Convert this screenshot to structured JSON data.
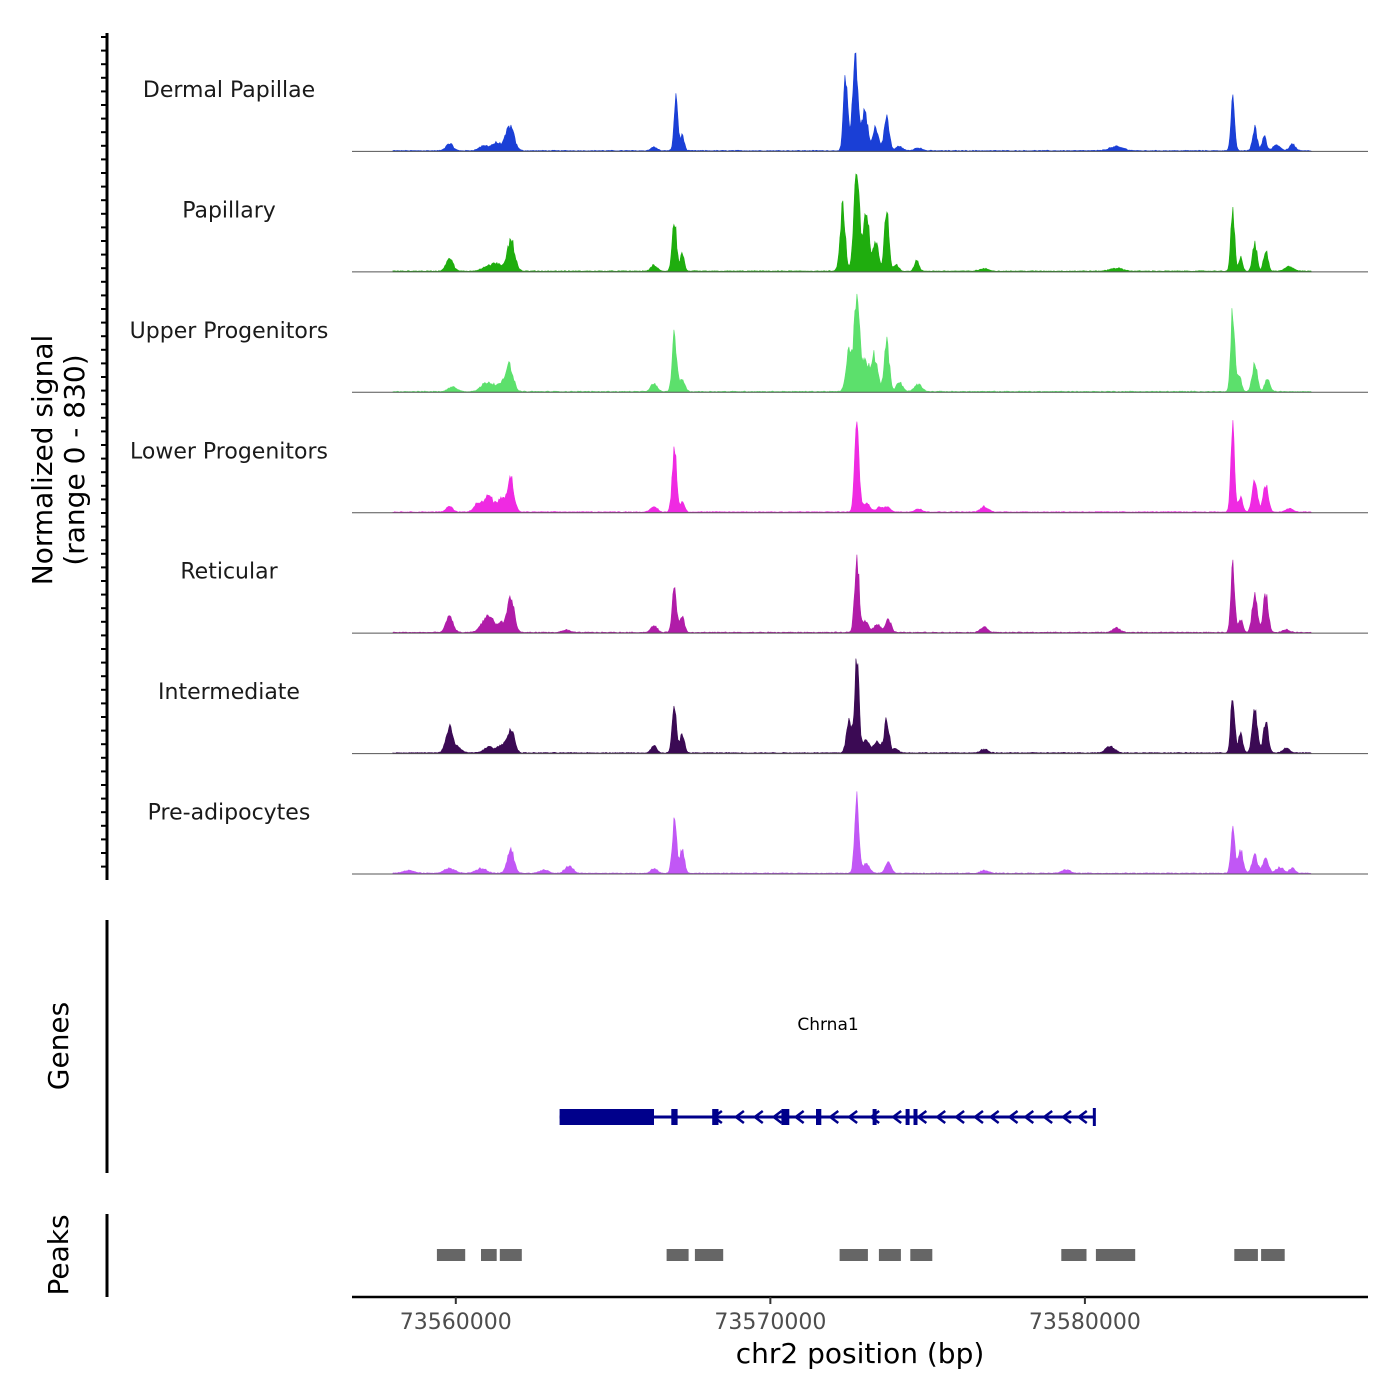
{
  "chart_data": {
    "type": "area",
    "title": "",
    "signal_axis_label": [
      "Normalized signal",
      "(range 0 - 830)"
    ],
    "signal_range": [
      0,
      830
    ],
    "xlabel": "chr2 position (bp)",
    "xlim": [
      73556700,
      73589000
    ],
    "x_ticks": [
      73560000,
      73570000,
      73580000
    ],
    "x_tick_labels": [
      "73560000",
      "73570000",
      "73580000"
    ],
    "signal_x_end": 73587200,
    "tracks": [
      {
        "name": "Dermal Papillae",
        "color": "#1a3fd6",
        "peaks": [
          {
            "pos": 73559800,
            "h": 60,
            "w": 110
          },
          {
            "pos": 73560900,
            "h": 40,
            "w": 160
          },
          {
            "pos": 73561300,
            "h": 65,
            "w": 150
          },
          {
            "pos": 73561720,
            "h": 210,
            "w": 130
          },
          {
            "pos": 73566300,
            "h": 35,
            "w": 90
          },
          {
            "pos": 73567000,
            "h": 480,
            "w": 60
          },
          {
            "pos": 73567200,
            "h": 130,
            "w": 60
          },
          {
            "pos": 73572400,
            "h": 660,
            "w": 70
          },
          {
            "pos": 73572700,
            "h": 830,
            "w": 80
          },
          {
            "pos": 73573000,
            "h": 360,
            "w": 90
          },
          {
            "pos": 73573350,
            "h": 200,
            "w": 90
          },
          {
            "pos": 73573700,
            "h": 290,
            "w": 80
          },
          {
            "pos": 73574100,
            "h": 40,
            "w": 100
          },
          {
            "pos": 73574700,
            "h": 25,
            "w": 120
          },
          {
            "pos": 73581000,
            "h": 35,
            "w": 220
          },
          {
            "pos": 73584700,
            "h": 430,
            "w": 60
          },
          {
            "pos": 73585400,
            "h": 200,
            "w": 70
          },
          {
            "pos": 73585700,
            "h": 120,
            "w": 70
          },
          {
            "pos": 73586100,
            "h": 50,
            "w": 120
          },
          {
            "pos": 73586600,
            "h": 55,
            "w": 90
          }
        ]
      },
      {
        "name": "Papillary",
        "color": "#1fad0e",
        "peaks": [
          {
            "pos": 73559800,
            "h": 110,
            "w": 110
          },
          {
            "pos": 73561000,
            "h": 40,
            "w": 180
          },
          {
            "pos": 73561300,
            "h": 60,
            "w": 130
          },
          {
            "pos": 73561750,
            "h": 270,
            "w": 120
          },
          {
            "pos": 73566300,
            "h": 50,
            "w": 100
          },
          {
            "pos": 73566950,
            "h": 420,
            "w": 70
          },
          {
            "pos": 73567200,
            "h": 150,
            "w": 60
          },
          {
            "pos": 73572300,
            "h": 560,
            "w": 80
          },
          {
            "pos": 73572750,
            "h": 830,
            "w": 90
          },
          {
            "pos": 73573050,
            "h": 560,
            "w": 80
          },
          {
            "pos": 73573350,
            "h": 250,
            "w": 90
          },
          {
            "pos": 73573700,
            "h": 570,
            "w": 70
          },
          {
            "pos": 73574000,
            "h": 60,
            "w": 80
          },
          {
            "pos": 73574650,
            "h": 90,
            "w": 70
          },
          {
            "pos": 73576800,
            "h": 20,
            "w": 150
          },
          {
            "pos": 73581000,
            "h": 25,
            "w": 200
          },
          {
            "pos": 73584700,
            "h": 520,
            "w": 60
          },
          {
            "pos": 73584950,
            "h": 120,
            "w": 60
          },
          {
            "pos": 73585400,
            "h": 240,
            "w": 70
          },
          {
            "pos": 73585750,
            "h": 180,
            "w": 70
          },
          {
            "pos": 73586500,
            "h": 40,
            "w": 130
          }
        ]
      },
      {
        "name": "Upper Progenitors",
        "color": "#5ce06c",
        "peaks": [
          {
            "pos": 73559900,
            "h": 40,
            "w": 140
          },
          {
            "pos": 73561000,
            "h": 80,
            "w": 180
          },
          {
            "pos": 73561400,
            "h": 50,
            "w": 150
          },
          {
            "pos": 73561700,
            "h": 230,
            "w": 120
          },
          {
            "pos": 73566300,
            "h": 70,
            "w": 100
          },
          {
            "pos": 73566950,
            "h": 480,
            "w": 70
          },
          {
            "pos": 73567200,
            "h": 110,
            "w": 80
          },
          {
            "pos": 73572500,
            "h": 380,
            "w": 90
          },
          {
            "pos": 73572750,
            "h": 830,
            "w": 80
          },
          {
            "pos": 73573000,
            "h": 260,
            "w": 110
          },
          {
            "pos": 73573300,
            "h": 310,
            "w": 110
          },
          {
            "pos": 73573700,
            "h": 420,
            "w": 80
          },
          {
            "pos": 73574100,
            "h": 80,
            "w": 100
          },
          {
            "pos": 73574700,
            "h": 60,
            "w": 120
          },
          {
            "pos": 73584700,
            "h": 700,
            "w": 60
          },
          {
            "pos": 73584900,
            "h": 150,
            "w": 70
          },
          {
            "pos": 73585400,
            "h": 250,
            "w": 80
          },
          {
            "pos": 73585800,
            "h": 110,
            "w": 80
          }
        ]
      },
      {
        "name": "Lower Progenitors",
        "color": "#ef2ae2",
        "peaks": [
          {
            "pos": 73559800,
            "h": 50,
            "w": 100
          },
          {
            "pos": 73560700,
            "h": 80,
            "w": 120
          },
          {
            "pos": 73561050,
            "h": 140,
            "w": 140
          },
          {
            "pos": 73561450,
            "h": 110,
            "w": 120
          },
          {
            "pos": 73561750,
            "h": 280,
            "w": 100
          },
          {
            "pos": 73566300,
            "h": 50,
            "w": 100
          },
          {
            "pos": 73566950,
            "h": 540,
            "w": 70
          },
          {
            "pos": 73567200,
            "h": 90,
            "w": 70
          },
          {
            "pos": 73572750,
            "h": 740,
            "w": 70
          },
          {
            "pos": 73573050,
            "h": 80,
            "w": 110
          },
          {
            "pos": 73573500,
            "h": 45,
            "w": 110
          },
          {
            "pos": 73573750,
            "h": 40,
            "w": 90
          },
          {
            "pos": 73574700,
            "h": 30,
            "w": 110
          },
          {
            "pos": 73576800,
            "h": 45,
            "w": 120
          },
          {
            "pos": 73584700,
            "h": 780,
            "w": 60
          },
          {
            "pos": 73584950,
            "h": 120,
            "w": 70
          },
          {
            "pos": 73585400,
            "h": 300,
            "w": 80
          },
          {
            "pos": 73585750,
            "h": 240,
            "w": 80
          },
          {
            "pos": 73586500,
            "h": 30,
            "w": 110
          }
        ]
      },
      {
        "name": "Reticular",
        "color": "#b01ca8",
        "peaks": [
          {
            "pos": 73559800,
            "h": 140,
            "w": 110
          },
          {
            "pos": 73560900,
            "h": 80,
            "w": 150
          },
          {
            "pos": 73561100,
            "h": 100,
            "w": 130
          },
          {
            "pos": 73561450,
            "h": 80,
            "w": 120
          },
          {
            "pos": 73561750,
            "h": 280,
            "w": 110
          },
          {
            "pos": 73563500,
            "h": 20,
            "w": 120
          },
          {
            "pos": 73566300,
            "h": 60,
            "w": 100
          },
          {
            "pos": 73566950,
            "h": 380,
            "w": 70
          },
          {
            "pos": 73567200,
            "h": 130,
            "w": 70
          },
          {
            "pos": 73572750,
            "h": 650,
            "w": 70
          },
          {
            "pos": 73573000,
            "h": 100,
            "w": 110
          },
          {
            "pos": 73573400,
            "h": 70,
            "w": 110
          },
          {
            "pos": 73573750,
            "h": 110,
            "w": 90
          },
          {
            "pos": 73576800,
            "h": 50,
            "w": 110
          },
          {
            "pos": 73581000,
            "h": 40,
            "w": 120
          },
          {
            "pos": 73584700,
            "h": 590,
            "w": 60
          },
          {
            "pos": 73584950,
            "h": 110,
            "w": 70
          },
          {
            "pos": 73585400,
            "h": 340,
            "w": 80
          },
          {
            "pos": 73585750,
            "h": 330,
            "w": 80
          },
          {
            "pos": 73586400,
            "h": 25,
            "w": 100
          }
        ]
      },
      {
        "name": "Intermediate",
        "color": "#3b0a54",
        "peaks": [
          {
            "pos": 73559800,
            "h": 230,
            "w": 110
          },
          {
            "pos": 73560100,
            "h": 40,
            "w": 110
          },
          {
            "pos": 73561050,
            "h": 50,
            "w": 160
          },
          {
            "pos": 73561450,
            "h": 60,
            "w": 130
          },
          {
            "pos": 73561750,
            "h": 210,
            "w": 110
          },
          {
            "pos": 73566300,
            "h": 60,
            "w": 90
          },
          {
            "pos": 73566950,
            "h": 380,
            "w": 70
          },
          {
            "pos": 73567200,
            "h": 160,
            "w": 70
          },
          {
            "pos": 73572500,
            "h": 300,
            "w": 80
          },
          {
            "pos": 73572750,
            "h": 780,
            "w": 70
          },
          {
            "pos": 73573050,
            "h": 120,
            "w": 100
          },
          {
            "pos": 73573400,
            "h": 90,
            "w": 110
          },
          {
            "pos": 73573700,
            "h": 280,
            "w": 80
          },
          {
            "pos": 73574000,
            "h": 40,
            "w": 80
          },
          {
            "pos": 73576800,
            "h": 30,
            "w": 110
          },
          {
            "pos": 73580800,
            "h": 60,
            "w": 140
          },
          {
            "pos": 73584700,
            "h": 520,
            "w": 60
          },
          {
            "pos": 73584950,
            "h": 160,
            "w": 70
          },
          {
            "pos": 73585400,
            "h": 380,
            "w": 80
          },
          {
            "pos": 73585750,
            "h": 260,
            "w": 80
          },
          {
            "pos": 73586400,
            "h": 40,
            "w": 110
          }
        ]
      },
      {
        "name": "Pre-adipocytes",
        "color": "#c157f5",
        "peaks": [
          {
            "pos": 73558500,
            "h": 25,
            "w": 180
          },
          {
            "pos": 73559800,
            "h": 40,
            "w": 180
          },
          {
            "pos": 73560800,
            "h": 40,
            "w": 180
          },
          {
            "pos": 73561750,
            "h": 200,
            "w": 110
          },
          {
            "pos": 73562800,
            "h": 30,
            "w": 140
          },
          {
            "pos": 73563600,
            "h": 60,
            "w": 130
          },
          {
            "pos": 73566300,
            "h": 40,
            "w": 100
          },
          {
            "pos": 73566950,
            "h": 440,
            "w": 70
          },
          {
            "pos": 73567200,
            "h": 210,
            "w": 70
          },
          {
            "pos": 73572750,
            "h": 640,
            "w": 70
          },
          {
            "pos": 73573050,
            "h": 80,
            "w": 110
          },
          {
            "pos": 73573750,
            "h": 100,
            "w": 90
          },
          {
            "pos": 73576800,
            "h": 25,
            "w": 120
          },
          {
            "pos": 73579400,
            "h": 30,
            "w": 140
          },
          {
            "pos": 73584700,
            "h": 410,
            "w": 60
          },
          {
            "pos": 73584950,
            "h": 200,
            "w": 80
          },
          {
            "pos": 73585400,
            "h": 150,
            "w": 90
          },
          {
            "pos": 73585750,
            "h": 130,
            "w": 90
          },
          {
            "pos": 73586200,
            "h": 50,
            "w": 120
          },
          {
            "pos": 73586600,
            "h": 45,
            "w": 90
          }
        ]
      }
    ],
    "genes_label": "Genes",
    "gene": {
      "name": "Chrna1",
      "color": "#00008b",
      "start": 73563300,
      "end": 73580300,
      "strand": "-",
      "exons": [
        [
          73563300,
          73566300
        ],
        [
          73566850,
          73567050
        ],
        [
          73568150,
          73568350
        ],
        [
          73570350,
          73570600
        ],
        [
          73571450,
          73571620
        ],
        [
          73573250,
          73573320
        ],
        [
          73574300,
          73574400
        ],
        [
          73574550,
          73574620
        ]
      ],
      "arrow_positions": [
        73568300,
        73569000,
        73569600,
        73570200,
        73570900,
        73572000,
        73572600,
        73573300,
        73574000,
        73574800,
        73575400,
        73576000,
        73576600,
        73577100,
        73577700,
        73578200,
        73578800,
        73579400,
        73579900
      ]
    },
    "peaks_label": "Peaks",
    "peak_regions": [
      [
        73559400,
        73560300
      ],
      [
        73560800,
        73561300
      ],
      [
        73561400,
        73562100
      ],
      [
        73566700,
        73567400
      ],
      [
        73567600,
        73568500
      ],
      [
        73572200,
        73573100
      ],
      [
        73573450,
        73574150
      ],
      [
        73574450,
        73575150
      ],
      [
        73579250,
        73580050
      ],
      [
        73580350,
        73581600
      ],
      [
        73584750,
        73585500
      ],
      [
        73585600,
        73586350
      ]
    ]
  }
}
